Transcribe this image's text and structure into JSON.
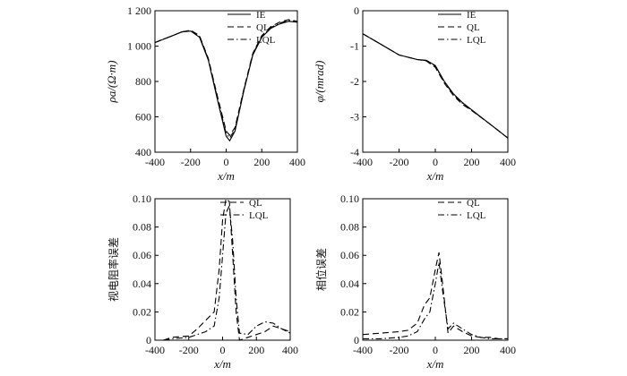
{
  "chart_data": [
    {
      "type": "line",
      "panel": "top-left",
      "xlabel": "x/m",
      "ylabel": "ρa/(Ω·m)",
      "xlim": [
        -400,
        400
      ],
      "ylim": [
        400,
        1200
      ],
      "xticks": [
        -400,
        -200,
        0,
        200,
        400
      ],
      "yticks": [
        400,
        600,
        800,
        1000,
        1200
      ],
      "ytick_labels": [
        "400",
        "600",
        "800",
        "1 000",
        "1 200"
      ],
      "legend_position": "top-right",
      "series": [
        {
          "name": "IE",
          "dash": "solid",
          "x": [
            -400,
            -300,
            -250,
            -200,
            -150,
            -100,
            -50,
            0,
            20,
            50,
            100,
            150,
            200,
            250,
            300,
            350,
            400
          ],
          "y": [
            1020,
            1060,
            1080,
            1085,
            1050,
            920,
            700,
            490,
            465,
            520,
            750,
            950,
            1050,
            1100,
            1125,
            1140,
            1135
          ]
        },
        {
          "name": "QL",
          "dash": "dashed",
          "x": [
            -400,
            -300,
            -250,
            -200,
            -150,
            -100,
            -50,
            0,
            20,
            50,
            100,
            150,
            200,
            250,
            300,
            350,
            400
          ],
          "y": [
            1020,
            1060,
            1080,
            1090,
            1060,
            930,
            720,
            520,
            495,
            540,
            760,
            960,
            1060,
            1110,
            1135,
            1150,
            1140
          ]
        },
        {
          "name": "LQL",
          "dash": "dashdot",
          "x": [
            -400,
            -300,
            -250,
            -200,
            -150,
            -100,
            -50,
            0,
            20,
            50,
            100,
            150,
            200,
            250,
            300,
            350,
            400
          ],
          "y": [
            1020,
            1060,
            1080,
            1088,
            1055,
            925,
            710,
            505,
            480,
            530,
            755,
            955,
            1055,
            1105,
            1130,
            1145,
            1138
          ]
        }
      ]
    },
    {
      "type": "line",
      "panel": "top-right",
      "xlabel": "x/m",
      "ylabel": "φ/(mrad)",
      "xlim": [
        -400,
        400
      ],
      "ylim": [
        -4,
        0
      ],
      "xticks": [
        -400,
        -200,
        0,
        200,
        400
      ],
      "yticks": [
        -4,
        -3,
        -2,
        -1,
        0
      ],
      "ytick_labels": [
        "-4",
        "-3",
        "-2",
        "-1",
        "0"
      ],
      "legend_position": "top-right",
      "series": [
        {
          "name": "IE",
          "dash": "solid",
          "x": [
            -400,
            -300,
            -200,
            -100,
            -50,
            0,
            50,
            100,
            150,
            200,
            300,
            400
          ],
          "y": [
            -0.65,
            -0.95,
            -1.25,
            -1.38,
            -1.4,
            -1.55,
            -2.0,
            -2.35,
            -2.6,
            -2.8,
            -3.2,
            -3.6
          ]
        },
        {
          "name": "QL",
          "dash": "dashed",
          "x": [
            -400,
            -300,
            -200,
            -100,
            -50,
            0,
            50,
            100,
            150,
            200,
            300,
            400
          ],
          "y": [
            -0.65,
            -0.95,
            -1.25,
            -1.38,
            -1.42,
            -1.6,
            -2.05,
            -2.4,
            -2.65,
            -2.82,
            -3.2,
            -3.6
          ]
        },
        {
          "name": "LQL",
          "dash": "dashdot",
          "x": [
            -400,
            -300,
            -200,
            -100,
            -50,
            0,
            50,
            100,
            150,
            200,
            300,
            400
          ],
          "y": [
            -0.65,
            -0.95,
            -1.25,
            -1.38,
            -1.41,
            -1.57,
            -2.02,
            -2.37,
            -2.62,
            -2.81,
            -3.2,
            -3.6
          ]
        }
      ]
    },
    {
      "type": "line",
      "panel": "bottom-left",
      "xlabel": "x/m",
      "ylabel": "视电阻率误差",
      "xlim": [
        -400,
        400
      ],
      "ylim": [
        0,
        0.1
      ],
      "xticks": [
        -400,
        -200,
        0,
        200,
        400
      ],
      "yticks": [
        0,
        0.02,
        0.04,
        0.06,
        0.08,
        0.1
      ],
      "ytick_labels": [
        "0",
        "0.02",
        "0.04",
        "0.06",
        "0.08",
        "0.10"
      ],
      "legend_position": "top-right",
      "series": [
        {
          "name": "QL",
          "dash": "dashed",
          "x": [
            -350,
            -300,
            -200,
            -150,
            -100,
            -50,
            -20,
            0,
            20,
            40,
            60,
            80,
            100,
            150,
            200,
            250,
            300,
            350,
            400
          ],
          "y": [
            0.0,
            0.002,
            0.003,
            0.008,
            0.014,
            0.02,
            0.05,
            0.085,
            0.1,
            0.098,
            0.06,
            0.02,
            0.0,
            0.002,
            0.004,
            0.006,
            0.01,
            0.008,
            0.006
          ]
        },
        {
          "name": "LQL",
          "dash": "dashdot",
          "x": [
            -350,
            -300,
            -200,
            -150,
            -100,
            -50,
            -20,
            0,
            20,
            40,
            60,
            80,
            100,
            150,
            200,
            250,
            300,
            350,
            400
          ],
          "y": [
            0.0,
            0.001,
            0.002,
            0.004,
            0.006,
            0.01,
            0.03,
            0.06,
            0.09,
            0.095,
            0.07,
            0.03,
            0.005,
            0.004,
            0.01,
            0.013,
            0.012,
            0.008,
            0.005
          ]
        }
      ]
    },
    {
      "type": "line",
      "panel": "bottom-right",
      "xlabel": "x/m",
      "ylabel": "相位误差",
      "xlim": [
        -400,
        400
      ],
      "ylim": [
        0,
        0.1
      ],
      "xticks": [
        -400,
        -200,
        0,
        200,
        400
      ],
      "yticks": [
        0,
        0.02,
        0.04,
        0.06,
        0.08,
        0.1
      ],
      "ytick_labels": [
        "0",
        "0.02",
        "0.04",
        "0.06",
        "0.08",
        "0.10"
      ],
      "legend_position": "top-right",
      "series": [
        {
          "name": "QL",
          "dash": "dashed",
          "x": [
            -400,
            -300,
            -200,
            -150,
            -100,
            -60,
            -30,
            0,
            20,
            40,
            70,
            100,
            150,
            200,
            250,
            300,
            350,
            400
          ],
          "y": [
            0.004,
            0.005,
            0.006,
            0.007,
            0.012,
            0.025,
            0.03,
            0.05,
            0.062,
            0.04,
            0.005,
            0.01,
            0.006,
            0.003,
            0.002,
            0.002,
            0.001,
            0.001
          ]
        },
        {
          "name": "LQL",
          "dash": "dashdot",
          "x": [
            -400,
            -300,
            -200,
            -150,
            -100,
            -60,
            -30,
            0,
            20,
            40,
            70,
            100,
            150,
            200,
            250,
            300,
            350,
            400
          ],
          "y": [
            0.001,
            0.001,
            0.002,
            0.003,
            0.006,
            0.015,
            0.02,
            0.04,
            0.055,
            0.035,
            0.008,
            0.012,
            0.008,
            0.004,
            0.002,
            0.001,
            0.001,
            0.001
          ]
        }
      ]
    }
  ]
}
